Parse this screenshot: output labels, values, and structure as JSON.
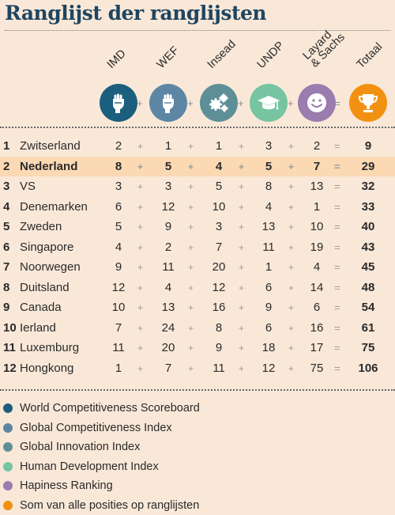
{
  "title": "Ranglijst der ranglijsten",
  "colors": {
    "imd": "#1c5e7d",
    "wef": "#5d86a5",
    "insead": "#5e8f97",
    "undp": "#76c4a1",
    "layard": "#9a7cae",
    "total": "#f29111",
    "highlight": "#fbd9b3"
  },
  "columns": [
    {
      "key": "imd",
      "label": [
        "IMD"
      ],
      "icon": "raised-fist-icon"
    },
    {
      "key": "wef",
      "label": [
        "WEF"
      ],
      "icon": "raised-fist-icon"
    },
    {
      "key": "insead",
      "label": [
        "Insead"
      ],
      "icon": "gears-icon"
    },
    {
      "key": "undp",
      "label": [
        "UNDP"
      ],
      "icon": "graduation-cap-icon"
    },
    {
      "key": "layard",
      "label": [
        "Layard",
        "& Sachs"
      ],
      "icon": "smiley-icon"
    },
    {
      "key": "total",
      "label": [
        "Totaal"
      ],
      "icon": "trophy-icon"
    }
  ],
  "operators": {
    "plus": "+",
    "equals": "="
  },
  "chart_data": {
    "type": "table",
    "title": "Ranglijst der ranglijsten",
    "headers": [
      "IMD",
      "WEF",
      "Insead",
      "UNDP",
      "Layard & Sachs",
      "Totaal"
    ],
    "highlight_row": 1,
    "rows": [
      {
        "rank": "1",
        "country": "Zwitserland",
        "values": [
          2,
          1,
          1,
          3,
          2
        ],
        "total": 9
      },
      {
        "rank": "2",
        "country": "Nederland",
        "values": [
          8,
          5,
          4,
          5,
          7
        ],
        "total": 29
      },
      {
        "rank": "3",
        "country": "VS",
        "values": [
          3,
          3,
          5,
          8,
          13
        ],
        "total": 32
      },
      {
        "rank": "4",
        "country": "Denemarken",
        "values": [
          6,
          12,
          10,
          4,
          1
        ],
        "total": 33
      },
      {
        "rank": "5",
        "country": "Zweden",
        "values": [
          5,
          9,
          3,
          13,
          10
        ],
        "total": 40
      },
      {
        "rank": "6",
        "country": "Singapore",
        "values": [
          4,
          2,
          7,
          11,
          19
        ],
        "total": 43
      },
      {
        "rank": "7",
        "country": "Noorwegen",
        "values": [
          9,
          11,
          20,
          1,
          4
        ],
        "total": 45
      },
      {
        "rank": "8",
        "country": "Duitsland",
        "values": [
          12,
          4,
          12,
          6,
          14
        ],
        "total": 48
      },
      {
        "rank": "9",
        "country": "Canada",
        "values": [
          10,
          13,
          16,
          9,
          6
        ],
        "total": 54
      },
      {
        "rank": "10",
        "country": "Ierland",
        "values": [
          7,
          24,
          8,
          6,
          16
        ],
        "total": 61
      },
      {
        "rank": "11",
        "country": "Luxemburg",
        "values": [
          11,
          20,
          9,
          18,
          17
        ],
        "total": 75
      },
      {
        "rank": "12",
        "country": "Hongkong",
        "values": [
          1,
          7,
          11,
          12,
          75
        ],
        "total": 106
      }
    ]
  },
  "legend": [
    {
      "label": "World Competitiveness Scoreboard",
      "color": "#1c5e7d"
    },
    {
      "label": "Global Competitiveness Index",
      "color": "#5d86a5"
    },
    {
      "label": "Global Innovation Index",
      "color": "#5e8f97"
    },
    {
      "label": "Human Development Index",
      "color": "#76c4a1"
    },
    {
      "label": "Hapiness Ranking",
      "color": "#9a7cae"
    },
    {
      "label": "Som van alle posities op ranglijsten",
      "color": "#f29111"
    }
  ]
}
